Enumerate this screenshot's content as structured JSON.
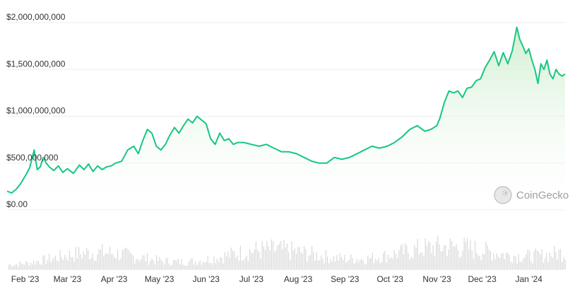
{
  "chart_data": [
    {
      "type": "area",
      "y_tick_labels": [
        "$2,000,000,000",
        "$1,500,000,000",
        "$1,000,000,000",
        "$500,000,000",
        "$0.00"
      ],
      "y_ticks": [
        2000000000,
        1500000000,
        1000000000,
        500000000,
        0
      ],
      "ylim": [
        0,
        2000000000
      ],
      "x_range": [
        "2023-01-20",
        "2024-01-25"
      ],
      "x_tick_labels": [
        "Feb '23",
        "Mar '23",
        "Apr '23",
        "May '23",
        "Jun '23",
        "Jul '23",
        "Aug '23",
        "Sep '23",
        "Oct '23",
        "Nov '23",
        "Dec '23",
        "Jan '24"
      ],
      "x_tick_dates": [
        "2023-02-01",
        "2023-03-01",
        "2023-04-01",
        "2023-05-01",
        "2023-06-01",
        "2023-07-01",
        "2023-08-01",
        "2023-09-01",
        "2023-10-01",
        "2023-11-01",
        "2023-12-01",
        "2024-01-01"
      ],
      "grid": true,
      "legend": "none",
      "colors": {
        "line": "#16c784",
        "fill_top": "#c9ecc9",
        "fill_bottom": "#ffffff",
        "grid": "#eeeeee",
        "volume_bar": "#d8d8d8"
      },
      "series": [
        {
          "x": [
            "2023-01-20",
            "2023-01-23",
            "2023-01-26",
            "2023-01-29",
            "2023-02-01",
            "2023-02-04",
            "2023-02-07",
            "2023-02-09",
            "2023-02-11",
            "2023-02-13",
            "2023-02-15",
            "2023-02-17",
            "2023-02-20",
            "2023-02-23",
            "2023-02-26",
            "2023-03-01",
            "2023-03-05",
            "2023-03-09",
            "2023-03-12",
            "2023-03-15",
            "2023-03-18",
            "2023-03-21",
            "2023-03-24",
            "2023-03-27",
            "2023-03-30",
            "2023-04-02",
            "2023-04-06",
            "2023-04-10",
            "2023-04-14",
            "2023-04-17",
            "2023-04-20",
            "2023-04-23",
            "2023-04-26",
            "2023-04-29",
            "2023-05-02",
            "2023-05-05",
            "2023-05-08",
            "2023-05-11",
            "2023-05-14",
            "2023-05-17",
            "2023-05-20",
            "2023-05-23",
            "2023-05-26",
            "2023-05-29",
            "2023-06-01",
            "2023-06-04",
            "2023-06-07",
            "2023-06-10",
            "2023-06-13",
            "2023-06-16",
            "2023-06-19",
            "2023-06-22",
            "2023-06-26",
            "2023-07-01",
            "2023-07-06",
            "2023-07-11",
            "2023-07-16",
            "2023-07-21",
            "2023-07-26",
            "2023-07-31",
            "2023-08-05",
            "2023-08-10",
            "2023-08-15",
            "2023-08-20",
            "2023-08-25",
            "2023-08-30",
            "2023-09-04",
            "2023-09-09",
            "2023-09-14",
            "2023-09-19",
            "2023-09-24",
            "2023-09-29",
            "2023-10-04",
            "2023-10-09",
            "2023-10-14",
            "2023-10-19",
            "2023-10-24",
            "2023-10-28",
            "2023-11-01",
            "2023-11-03",
            "2023-11-06",
            "2023-11-09",
            "2023-11-12",
            "2023-11-15",
            "2023-11-18",
            "2023-11-21",
            "2023-11-24",
            "2023-11-27",
            "2023-11-30",
            "2023-12-03",
            "2023-12-06",
            "2023-12-09",
            "2023-12-12",
            "2023-12-15",
            "2023-12-18",
            "2023-12-21",
            "2023-12-24",
            "2023-12-26",
            "2023-12-28",
            "2023-12-30",
            "2024-01-01",
            "2024-01-03",
            "2024-01-05",
            "2024-01-07",
            "2024-01-09",
            "2024-01-11",
            "2024-01-13",
            "2024-01-15",
            "2024-01-17",
            "2024-01-19",
            "2024-01-21",
            "2024-01-23",
            "2024-01-25"
          ],
          "y": [
            200000000,
            180000000,
            220000000,
            280000000,
            360000000,
            450000000,
            640000000,
            430000000,
            460000000,
            560000000,
            500000000,
            460000000,
            420000000,
            470000000,
            400000000,
            440000000,
            390000000,
            480000000,
            430000000,
            490000000,
            410000000,
            470000000,
            430000000,
            460000000,
            470000000,
            500000000,
            520000000,
            640000000,
            680000000,
            600000000,
            740000000,
            860000000,
            820000000,
            680000000,
            640000000,
            700000000,
            800000000,
            880000000,
            820000000,
            900000000,
            970000000,
            930000000,
            1000000000,
            960000000,
            920000000,
            760000000,
            700000000,
            820000000,
            740000000,
            760000000,
            700000000,
            720000000,
            720000000,
            700000000,
            680000000,
            700000000,
            660000000,
            620000000,
            620000000,
            600000000,
            560000000,
            520000000,
            500000000,
            500000000,
            560000000,
            540000000,
            560000000,
            600000000,
            640000000,
            680000000,
            660000000,
            680000000,
            720000000,
            780000000,
            860000000,
            900000000,
            840000000,
            860000000,
            900000000,
            980000000,
            1150000000,
            1270000000,
            1250000000,
            1270000000,
            1200000000,
            1300000000,
            1310000000,
            1380000000,
            1400000000,
            1520000000,
            1600000000,
            1690000000,
            1540000000,
            1680000000,
            1560000000,
            1700000000,
            1950000000,
            1820000000,
            1750000000,
            1670000000,
            1720000000,
            1600000000,
            1500000000,
            1350000000,
            1560000000,
            1500000000,
            1600000000,
            1450000000,
            1400000000,
            1500000000,
            1450000000,
            1430000000,
            1450000000
          ]
        }
      ],
      "volume_bars": "relative volume bars (unlabeled)"
    }
  ],
  "watermark": {
    "text": "CoinGecko",
    "icon": "gecko-logo-icon"
  }
}
